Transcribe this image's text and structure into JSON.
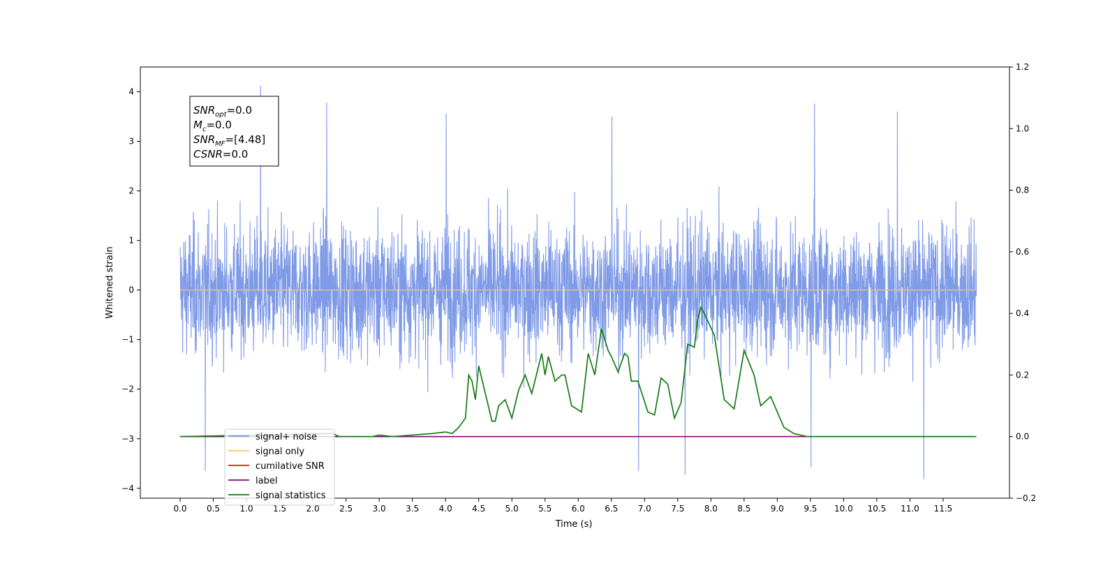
{
  "chart_data": {
    "type": "line",
    "xlabel": "Time (s)",
    "ylabel": "Whitened strain",
    "xlim": [
      -0.6,
      12.5
    ],
    "ylim": [
      -4.2,
      4.5
    ],
    "y2lim": [
      -0.2,
      1.2
    ],
    "x_ticks": [
      "0.0",
      "0.5",
      "1.0",
      "1.5",
      "2.0",
      "2.5",
      "3.0",
      "3.5",
      "4.0",
      "4.5",
      "5.0",
      "5.5",
      "6.0",
      "6.5",
      "7.0",
      "7.5",
      "8.0",
      "8.5",
      "9.0",
      "9.5",
      "10.0",
      "10.5",
      "11.0",
      "11.5"
    ],
    "y_ticks": [
      "−4",
      "−3",
      "−2",
      "−1",
      "0",
      "1",
      "2",
      "3",
      "4"
    ],
    "y2_ticks": [
      "−0.2",
      "0.0",
      "0.2",
      "0.4",
      "0.6",
      "0.8",
      "1.0",
      "1.2"
    ],
    "annotation": {
      "lines": [
        {
          "base": "SNR",
          "sub": "opt",
          "rest": "=0.0"
        },
        {
          "base": "M",
          "sub": "c",
          "rest": "=0.0"
        },
        {
          "base": "SNR",
          "sub": "MF",
          "rest": "=[4.48]"
        },
        {
          "base": "CSNR",
          "sub": "",
          "rest": "=0.0"
        }
      ]
    },
    "legend": {
      "location": "lower-left",
      "entries": [
        {
          "label": "signal+ noise",
          "color": "#7895e6"
        },
        {
          "label": "signal only",
          "color": "#ffc36b"
        },
        {
          "label": "cumilative SNR",
          "color": "#e8150a"
        },
        {
          "label": "label",
          "color": "#7b0a72"
        },
        {
          "label": "signal statistics",
          "color": "#137a13"
        }
      ]
    },
    "series": [
      {
        "name": "signal+ noise",
        "axis": "left",
        "color": "#7895e6",
        "x_range": [
          0.0,
          12.0
        ],
        "envelope_typical": [
          -1.8,
          1.7
        ],
        "max": 4.12,
        "min": -3.82,
        "spikes": [
          {
            "x": 1.21,
            "y": 4.12
          },
          {
            "x": 2.21,
            "y": 3.78
          },
          {
            "x": 4.01,
            "y": 3.56
          },
          {
            "x": 9.56,
            "y": 3.76
          },
          {
            "x": 10.81,
            "y": 3.6
          },
          {
            "x": 6.51,
            "y": 3.5
          },
          {
            "x": 11.21,
            "y": -3.82
          },
          {
            "x": 0.38,
            "y": -3.65
          },
          {
            "x": 6.91,
            "y": -3.65
          },
          {
            "x": 7.61,
            "y": -3.72
          },
          {
            "x": 9.51,
            "y": -3.58
          }
        ]
      },
      {
        "name": "signal only",
        "axis": "left",
        "color": "#ffc36b",
        "x": [
          0.0,
          12.0
        ],
        "y": [
          0.0,
          0.0
        ]
      },
      {
        "name": "label",
        "axis": "right",
        "color": "#7b0a72",
        "x": [
          0.0,
          11.95
        ],
        "y": [
          0.0,
          0.0
        ]
      },
      {
        "name": "signal statistics",
        "axis": "right",
        "color": "#137a13",
        "x": [
          0.0,
          2.3,
          2.4,
          2.6,
          2.9,
          3.0,
          3.2,
          3.5,
          3.8,
          4.0,
          4.1,
          4.2,
          4.3,
          4.35,
          4.4,
          4.45,
          4.5,
          4.6,
          4.7,
          4.75,
          4.8,
          4.9,
          5.0,
          5.1,
          5.2,
          5.3,
          5.45,
          5.5,
          5.55,
          5.65,
          5.75,
          5.8,
          5.9,
          6.05,
          6.15,
          6.25,
          6.35,
          6.45,
          6.5,
          6.6,
          6.7,
          6.75,
          6.8,
          6.9,
          7.05,
          7.15,
          7.25,
          7.35,
          7.45,
          7.55,
          7.65,
          7.75,
          7.8,
          7.85,
          7.9,
          8.05,
          8.2,
          8.35,
          8.5,
          8.65,
          8.75,
          8.9,
          9.1,
          9.25,
          9.45,
          12.0
        ],
        "y": [
          0.0,
          0.01,
          0.0,
          0.0,
          0.0,
          0.005,
          0.0,
          0.005,
          0.01,
          0.015,
          0.01,
          0.03,
          0.06,
          0.2,
          0.18,
          0.12,
          0.23,
          0.14,
          0.05,
          0.05,
          0.1,
          0.12,
          0.06,
          0.15,
          0.2,
          0.14,
          0.27,
          0.2,
          0.26,
          0.18,
          0.2,
          0.2,
          0.1,
          0.08,
          0.27,
          0.2,
          0.35,
          0.28,
          0.26,
          0.21,
          0.27,
          0.26,
          0.18,
          0.18,
          0.08,
          0.07,
          0.19,
          0.17,
          0.06,
          0.11,
          0.3,
          0.29,
          0.38,
          0.42,
          0.4,
          0.33,
          0.12,
          0.09,
          0.28,
          0.2,
          0.1,
          0.13,
          0.03,
          0.01,
          0.0,
          0.0
        ]
      }
    ]
  }
}
